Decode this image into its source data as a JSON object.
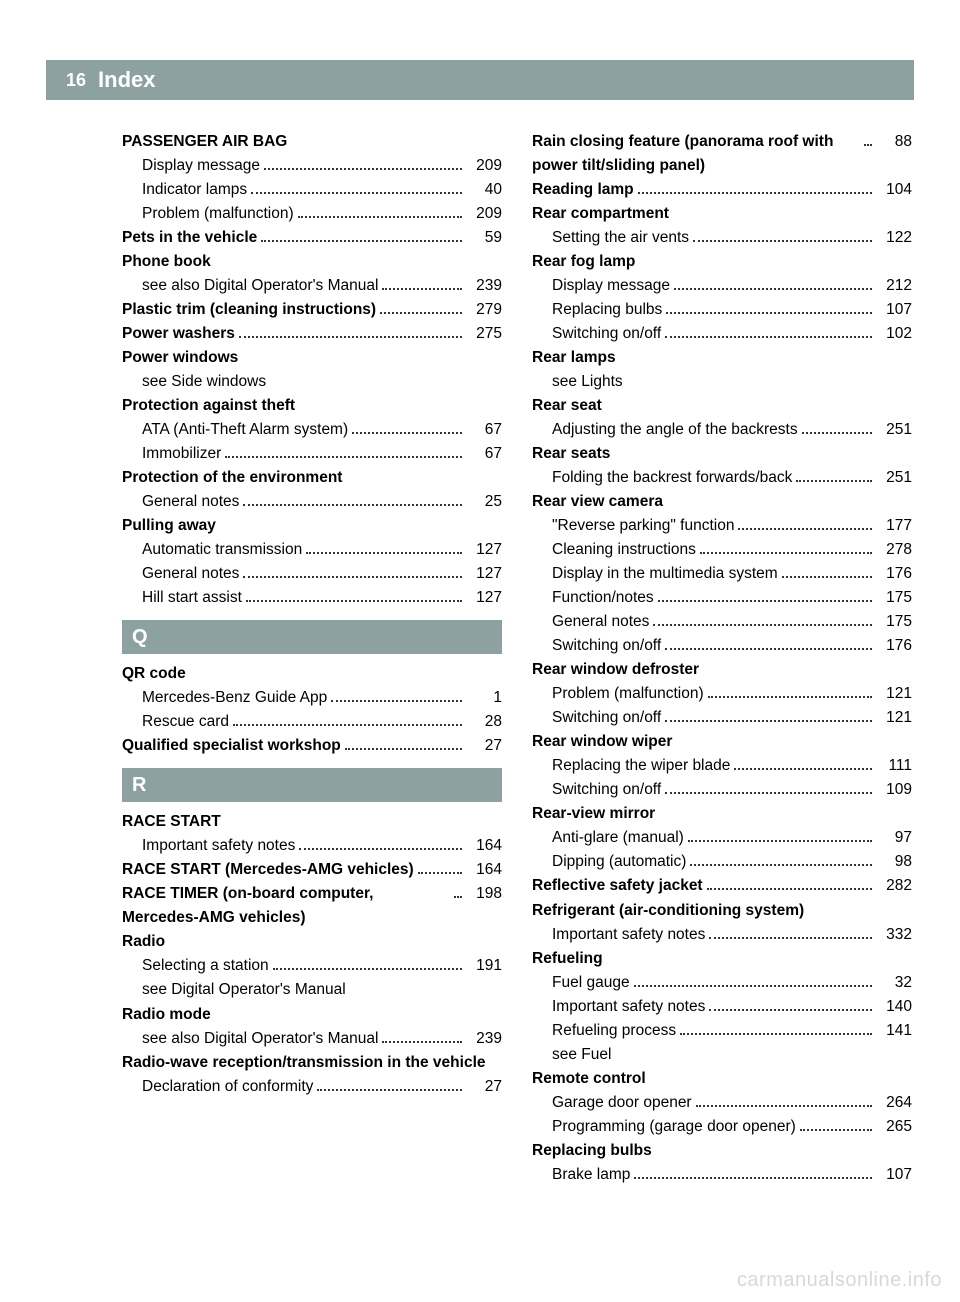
{
  "page_number": "16",
  "header_title": "Index",
  "watermark": "carmanualsonline.info",
  "colors": {
    "header_bg": "#8ea1a1",
    "header_text": "#ffffff",
    "body_text": "#000000",
    "page_bg": "#ffffff",
    "watermark": "#d8d8d8"
  },
  "fonts": {
    "body_size_pt": 12,
    "header_title_pt": 17,
    "page_number_pt": 14,
    "section_letter_pt": 16
  },
  "col1": [
    {
      "type": "heading",
      "text": "PASSENGER AIR BAG"
    },
    {
      "type": "sub",
      "text": "Display message",
      "page": "209"
    },
    {
      "type": "sub",
      "text": "Indicator lamps",
      "page": "40"
    },
    {
      "type": "sub",
      "text": "Problem (malfunction)",
      "page": "209"
    },
    {
      "type": "bold",
      "text": "Pets in the vehicle",
      "page": "59"
    },
    {
      "type": "heading",
      "text": "Phone book"
    },
    {
      "type": "subwrap",
      "text": "see also Digital Operator's Manual",
      "page": "239"
    },
    {
      "type": "boldwrap",
      "text": "Plastic trim (cleaning instructions)",
      "page": "279"
    },
    {
      "type": "bold",
      "text": "Power washers",
      "page": "275"
    },
    {
      "type": "heading",
      "text": "Power windows"
    },
    {
      "type": "subnote",
      "text": "see Side windows"
    },
    {
      "type": "heading",
      "text": "Protection against theft"
    },
    {
      "type": "sub",
      "text": "ATA (Anti-Theft Alarm system)",
      "page": "67"
    },
    {
      "type": "sub",
      "text": "Immobilizer",
      "page": "67"
    },
    {
      "type": "heading",
      "text": "Protection of the environment"
    },
    {
      "type": "sub",
      "text": "General notes",
      "page": "25"
    },
    {
      "type": "heading",
      "text": "Pulling away"
    },
    {
      "type": "sub",
      "text": "Automatic transmission",
      "page": "127"
    },
    {
      "type": "sub",
      "text": "General notes",
      "page": "127"
    },
    {
      "type": "sub",
      "text": "Hill start assist",
      "page": "127"
    },
    {
      "type": "letter",
      "text": "Q"
    },
    {
      "type": "heading",
      "text": "QR code"
    },
    {
      "type": "sub",
      "text": "Mercedes-Benz Guide App",
      "page": "1"
    },
    {
      "type": "sub",
      "text": "Rescue card",
      "page": "28"
    },
    {
      "type": "bold",
      "text": "Qualified specialist workshop",
      "page": "27"
    },
    {
      "type": "letter",
      "text": "R"
    },
    {
      "type": "heading",
      "text": "RACE START"
    },
    {
      "type": "sub",
      "text": "Important safety notes",
      "page": "164"
    },
    {
      "type": "boldwrap",
      "text": "RACE START (Mercedes-AMG vehicles)",
      "page": "164"
    },
    {
      "type": "boldwrap",
      "text": "RACE TIMER (on-board computer, Mercedes-AMG vehicles)",
      "page": "198"
    },
    {
      "type": "heading",
      "text": "Radio"
    },
    {
      "type": "sub",
      "text": "Selecting a station",
      "page": "191"
    },
    {
      "type": "subnote",
      "text": "see Digital Operator's Manual"
    },
    {
      "type": "heading",
      "text": "Radio mode"
    },
    {
      "type": "subwrap",
      "text": "see also Digital Operator's Manual",
      "page": "239"
    },
    {
      "type": "headingwrap",
      "text": "Radio-wave reception/transmission in the vehicle"
    },
    {
      "type": "sub",
      "text": "Declaration of conformity",
      "page": "27"
    }
  ],
  "col2": [
    {
      "type": "boldwrap",
      "text": "Rain closing feature (panorama roof with power tilt/sliding panel)",
      "page": "88"
    },
    {
      "type": "bold",
      "text": "Reading lamp",
      "page": "104"
    },
    {
      "type": "heading",
      "text": "Rear compartment"
    },
    {
      "type": "sub",
      "text": "Setting the air vents",
      "page": "122"
    },
    {
      "type": "heading",
      "text": "Rear fog lamp"
    },
    {
      "type": "sub",
      "text": "Display message",
      "page": "212"
    },
    {
      "type": "sub",
      "text": "Replacing bulbs",
      "page": "107"
    },
    {
      "type": "sub",
      "text": "Switching on/off",
      "page": "102"
    },
    {
      "type": "heading",
      "text": "Rear lamps"
    },
    {
      "type": "subnote",
      "text": "see Lights"
    },
    {
      "type": "heading",
      "text": "Rear seat"
    },
    {
      "type": "subwrap",
      "text": "Adjusting the angle of the backrests",
      "page": "251"
    },
    {
      "type": "heading",
      "text": "Rear seats"
    },
    {
      "type": "subwrap",
      "text": "Folding the backrest forwards/back",
      "page": "251"
    },
    {
      "type": "heading",
      "text": "Rear view camera"
    },
    {
      "type": "sub",
      "text": "\"Reverse parking\" function",
      "page": "177"
    },
    {
      "type": "sub",
      "text": "Cleaning instructions",
      "page": "278"
    },
    {
      "type": "sub",
      "text": "Display in the multimedia system",
      "page": "176"
    },
    {
      "type": "sub",
      "text": "Function/notes",
      "page": "175"
    },
    {
      "type": "sub",
      "text": "General notes",
      "page": "175"
    },
    {
      "type": "sub",
      "text": "Switching on/off",
      "page": "176"
    },
    {
      "type": "heading",
      "text": "Rear window defroster"
    },
    {
      "type": "sub",
      "text": "Problem (malfunction)",
      "page": "121"
    },
    {
      "type": "sub",
      "text": "Switching on/off",
      "page": "121"
    },
    {
      "type": "heading",
      "text": "Rear window wiper"
    },
    {
      "type": "sub",
      "text": "Replacing the wiper blade",
      "page": "111"
    },
    {
      "type": "sub",
      "text": "Switching on/off",
      "page": "109"
    },
    {
      "type": "heading",
      "text": "Rear-view mirror"
    },
    {
      "type": "sub",
      "text": "Anti-glare (manual)",
      "page": "97"
    },
    {
      "type": "sub",
      "text": "Dipping (automatic)",
      "page": "98"
    },
    {
      "type": "bold",
      "text": "Reflective safety jacket",
      "page": "282"
    },
    {
      "type": "headingwrap",
      "text": "Refrigerant (air-conditioning system)"
    },
    {
      "type": "sub",
      "text": "Important safety notes",
      "page": "332"
    },
    {
      "type": "heading",
      "text": "Refueling"
    },
    {
      "type": "sub",
      "text": "Fuel gauge",
      "page": "32"
    },
    {
      "type": "sub",
      "text": "Important safety notes",
      "page": "140"
    },
    {
      "type": "sub",
      "text": "Refueling process",
      "page": "141"
    },
    {
      "type": "subnote",
      "text": "see Fuel"
    },
    {
      "type": "heading",
      "text": "Remote control"
    },
    {
      "type": "sub",
      "text": "Garage door opener",
      "page": "264"
    },
    {
      "type": "subwrap",
      "text": "Programming (garage door opener)",
      "page": "265"
    },
    {
      "type": "heading",
      "text": "Replacing bulbs"
    },
    {
      "type": "sub",
      "text": "Brake lamp",
      "page": "107"
    }
  ]
}
